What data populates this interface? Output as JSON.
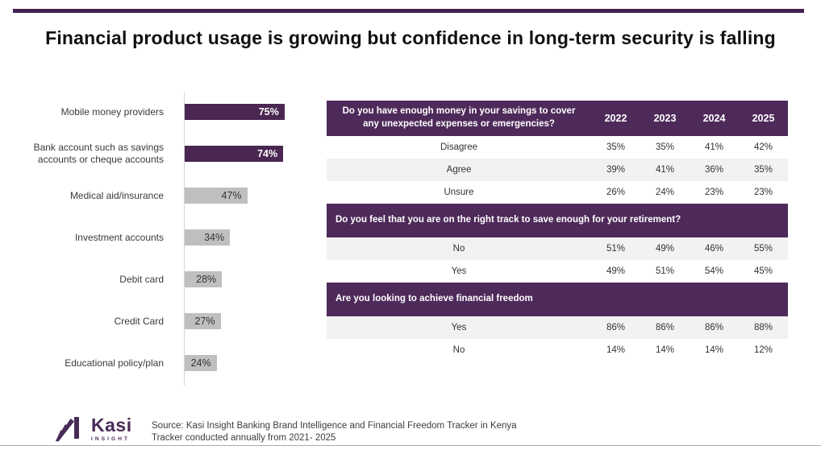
{
  "title": "Financial product usage is growing but confidence in long-term security is falling",
  "colors": {
    "brand_purple": "#4a2b58",
    "bar_purple": "#492751",
    "header_purple": "#4e2a5a",
    "bar_gray": "#bfbfbf",
    "row_alt": "#f2f2f2",
    "accent_rule": "#42214d"
  },
  "chart_data": {
    "type": "bar",
    "orientation": "horizontal",
    "unit": "%",
    "xlim": [
      0,
      100
    ],
    "categories": [
      "Mobile money providers",
      "Bank account such as savings accounts or cheque accounts",
      "Medical aid/insurance",
      "Investment accounts",
      "Debit card",
      "Credit Card",
      "Educational policy/plan"
    ],
    "values": [
      75,
      74,
      47,
      34,
      28,
      27,
      24
    ],
    "labels": [
      "75%",
      "74%",
      "47%",
      "34%",
      "28%",
      "27%",
      "24%"
    ],
    "highlighted": [
      true,
      true,
      false,
      false,
      false,
      false,
      false
    ]
  },
  "table": {
    "years": [
      "2022",
      "2023",
      "2024",
      "2025"
    ],
    "sections": [
      {
        "question": "Do you have enough money in your savings to cover any unexpected expenses or emergencies?",
        "header_style": "centered",
        "show_years": true,
        "rows": [
          {
            "label": "Disagree",
            "values": [
              "35%",
              "35%",
              "41%",
              "42%"
            ]
          },
          {
            "label": "Agree",
            "values": [
              "39%",
              "41%",
              "36%",
              "35%"
            ]
          },
          {
            "label": "Unsure",
            "values": [
              "26%",
              "24%",
              "23%",
              "23%"
            ]
          }
        ]
      },
      {
        "question": "Do you feel that you are on the right track to save enough for your retirement?",
        "header_style": "leftal",
        "show_years": false,
        "rows": [
          {
            "label": "No",
            "values": [
              "51%",
              "49%",
              "46%",
              "55%"
            ]
          },
          {
            "label": "Yes",
            "values": [
              "49%",
              "51%",
              "54%",
              "45%"
            ]
          }
        ]
      },
      {
        "question": "Are you looking to achieve financial freedom",
        "header_style": "leftal",
        "show_years": false,
        "rows": [
          {
            "label": "Yes",
            "values": [
              "86%",
              "86%",
              "86%",
              "88%"
            ]
          },
          {
            "label": "No",
            "values": [
              "14%",
              "14%",
              "14%",
              "12%"
            ]
          }
        ]
      }
    ]
  },
  "footer": {
    "logo_name": "Kasi",
    "logo_sub": "INSIGHT",
    "source_line1": "Source: Kasi Insight Banking Brand Intelligence and Financial Freedom Tracker in Kenya",
    "source_line2": "Tracker conducted annually from 2021- 2025"
  }
}
